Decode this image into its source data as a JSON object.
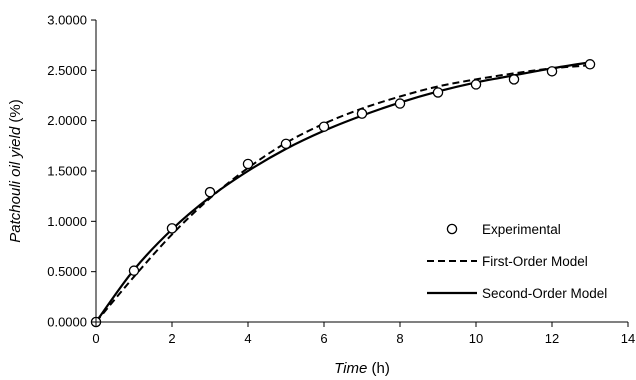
{
  "chart_data": {
    "type": "scatter",
    "title": "",
    "xlabel": {
      "italic": "Time",
      "unit": " (h)"
    },
    "ylabel": {
      "italic": "Patchouli oil yield",
      "unit": " (%)"
    },
    "xlim": [
      0,
      14
    ],
    "ylim": [
      0,
      3
    ],
    "x_ticks": [
      0,
      2,
      4,
      6,
      8,
      10,
      12,
      14
    ],
    "x_tick_labels": [
      "0",
      "2",
      "4",
      "6",
      "8",
      "10",
      "12",
      "14"
    ],
    "y_ticks": [
      0,
      0.5,
      1.0,
      1.5,
      2.0,
      2.5,
      3.0
    ],
    "y_tick_labels": [
      "0.0000",
      "0.5000",
      "1.0000",
      "1.5000",
      "2.0000",
      "2.5000",
      "3.0000"
    ],
    "grid": false,
    "legend_position": "right",
    "series": [
      {
        "name": "Experimental",
        "style": "open-circle",
        "x": [
          0,
          1,
          2,
          3,
          4,
          5,
          6,
          7,
          8,
          9,
          10,
          11,
          12,
          13
        ],
        "y": [
          0,
          0.51,
          0.93,
          1.29,
          1.57,
          1.77,
          1.94,
          2.07,
          2.17,
          2.28,
          2.36,
          2.41,
          2.49,
          2.56
        ]
      },
      {
        "name": "First-Order Model",
        "style": "dashed",
        "x": [
          0,
          1,
          2,
          3,
          4,
          5,
          6,
          7,
          8,
          9,
          10,
          11,
          12,
          13
        ],
        "y": [
          0,
          0.45,
          0.87,
          1.23,
          1.53,
          1.78,
          1.97,
          2.12,
          2.24,
          2.34,
          2.41,
          2.47,
          2.52,
          2.55
        ]
      },
      {
        "name": "Second-Order Model",
        "style": "solid",
        "x": [
          0,
          1,
          2,
          3,
          4,
          5,
          6,
          7,
          8,
          9,
          10,
          11,
          12,
          13
        ],
        "y": [
          0,
          0.52,
          0.92,
          1.24,
          1.5,
          1.72,
          1.9,
          2.05,
          2.18,
          2.29,
          2.38,
          2.45,
          2.52,
          2.58
        ]
      }
    ]
  }
}
